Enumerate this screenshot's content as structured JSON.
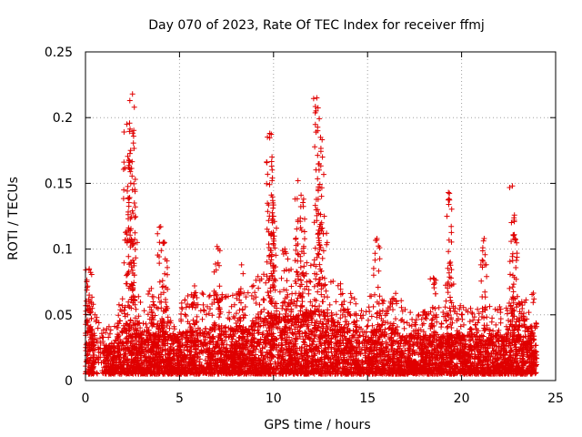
{
  "chart_data": {
    "type": "scatter",
    "title": "Day 070 of 2023, Rate Of TEC Index for receiver ffmj",
    "xlabel": "GPS time / hours",
    "ylabel": "ROTI / TECUs",
    "xlim": [
      0,
      25
    ],
    "ylim": [
      0,
      0.25
    ],
    "xticks": [
      0,
      5,
      10,
      15,
      20,
      25
    ],
    "yticks": [
      0,
      0.05,
      0.1,
      0.15,
      0.2,
      0.25
    ],
    "xtick_labels": [
      "0",
      "5",
      "10",
      "15",
      "20",
      "25"
    ],
    "ytick_labels": [
      "0",
      "0.05",
      "0.1",
      "0.15",
      "0.2",
      "0.25"
    ],
    "grid": true,
    "legend": "none",
    "marker": "+",
    "series_color": "#e00000",
    "density_profile_hours": [
      0,
      0.5,
      1,
      1.5,
      2,
      2.5,
      3,
      3.5,
      4,
      4.5,
      5,
      5.5,
      6,
      6.5,
      7,
      7.5,
      8,
      8.5,
      9,
      9.5,
      10,
      10.5,
      11,
      11.5,
      12,
      12.5,
      13,
      13.5,
      14,
      14.5,
      15,
      15.5,
      16,
      16.5,
      17,
      17.5,
      18,
      18.5,
      19,
      19.5,
      20,
      20.5,
      21,
      21.5,
      22,
      22.5,
      23,
      23.5,
      24
    ],
    "density_profile_roti": [
      0.045,
      0.03,
      0.02,
      0.025,
      0.035,
      0.04,
      0.03,
      0.03,
      0.035,
      0.03,
      0.03,
      0.035,
      0.035,
      0.035,
      0.035,
      0.035,
      0.035,
      0.035,
      0.04,
      0.045,
      0.045,
      0.045,
      0.045,
      0.045,
      0.05,
      0.05,
      0.045,
      0.04,
      0.035,
      0.035,
      0.035,
      0.035,
      0.035,
      0.035,
      0.03,
      0.03,
      0.03,
      0.03,
      0.03,
      0.03,
      0.03,
      0.03,
      0.03,
      0.03,
      0.03,
      0.03,
      0.03,
      0.035,
      0.04
    ],
    "spikes": [
      {
        "x": 0.2,
        "y": 0.085
      },
      {
        "x": 2.2,
        "y": 0.195
      },
      {
        "x": 2.4,
        "y": 0.175
      },
      {
        "x": 2.5,
        "y": 0.218
      },
      {
        "x": 2.6,
        "y": 0.135
      },
      {
        "x": 3.5,
        "y": 0.07
      },
      {
        "x": 4.0,
        "y": 0.117
      },
      {
        "x": 4.2,
        "y": 0.105
      },
      {
        "x": 5.8,
        "y": 0.072
      },
      {
        "x": 7.0,
        "y": 0.102
      },
      {
        "x": 8.3,
        "y": 0.088
      },
      {
        "x": 9.8,
        "y": 0.188
      },
      {
        "x": 9.9,
        "y": 0.163
      },
      {
        "x": 10.0,
        "y": 0.125
      },
      {
        "x": 10.6,
        "y": 0.1
      },
      {
        "x": 11.3,
        "y": 0.152
      },
      {
        "x": 11.6,
        "y": 0.138
      },
      {
        "x": 12.3,
        "y": 0.215
      },
      {
        "x": 12.5,
        "y": 0.185
      },
      {
        "x": 12.7,
        "y": 0.125
      },
      {
        "x": 15.5,
        "y": 0.108
      },
      {
        "x": 18.5,
        "y": 0.078
      },
      {
        "x": 19.3,
        "y": 0.143
      },
      {
        "x": 19.4,
        "y": 0.09
      },
      {
        "x": 21.2,
        "y": 0.108
      },
      {
        "x": 22.7,
        "y": 0.148
      },
      {
        "x": 22.8,
        "y": 0.122
      },
      {
        "x": 23.2,
        "y": 0.06
      }
    ]
  }
}
